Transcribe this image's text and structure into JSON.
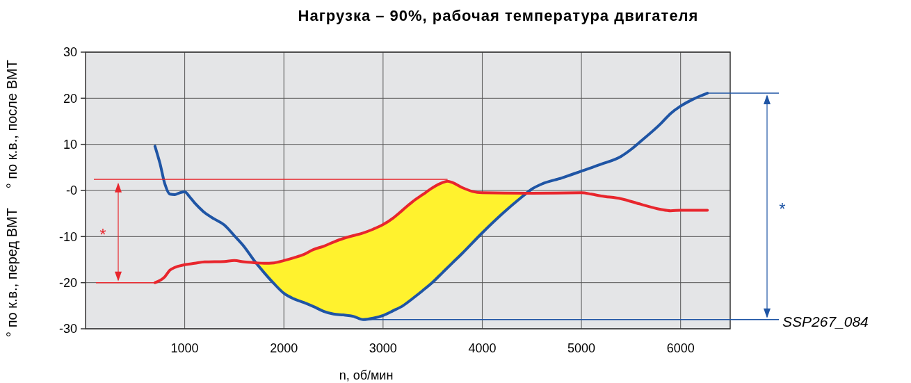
{
  "chart_data": {
    "type": "line",
    "title": "Нагрузка – 90%, рабочая температура двигателя",
    "xlabel": "n, об/мин",
    "ylabel": "° по к.в., перед ВМТ     ° по к.в., после ВМТ",
    "xlim": [
      0,
      6500
    ],
    "xticks": [
      1000,
      2000,
      3000,
      4000,
      5000,
      6000
    ],
    "ylim": [
      -30,
      30
    ],
    "yticks": [
      -30,
      -20,
      -10,
      {
        "value": 0,
        "label": "-0"
      },
      10,
      20,
      30
    ],
    "grid": true,
    "series": [
      {
        "color": "#1f55a5",
        "x": [
          700,
          750,
          800,
          850,
          900,
          950,
          1000,
          1050,
          1100,
          1150,
          1200,
          1300,
          1400,
          1500,
          1600,
          1700,
          1800,
          1900,
          2000,
          2100,
          2200,
          2300,
          2400,
          2500,
          2600,
          2700,
          2800,
          2900,
          3000,
          3100,
          3200,
          3300,
          3400,
          3500,
          3600,
          3700,
          3800,
          4000,
          4200,
          4400,
          4500,
          4600,
          4800,
          5000,
          5200,
          5400,
          5500,
          5600,
          5800,
          5900,
          6000,
          6100,
          6200,
          6270
        ],
        "values": [
          9.6,
          5.9,
          1.4,
          -0.8,
          -0.9,
          -0.5,
          -0.3,
          -1.4,
          -2.7,
          -3.8,
          -4.8,
          -6.2,
          -7.5,
          -9.8,
          -12.2,
          -15.2,
          -17.8,
          -20.2,
          -22.3,
          -23.5,
          -24.3,
          -25.2,
          -26.2,
          -26.8,
          -27.0,
          -27.3,
          -28.0,
          -27.7,
          -27.1,
          -26.1,
          -25.0,
          -23.4,
          -21.7,
          -19.9,
          -17.8,
          -15.7,
          -13.6,
          -9.2,
          -5.1,
          -1.4,
          0.3,
          1.4,
          2.7,
          4.2,
          5.7,
          7.4,
          8.9,
          10.7,
          14.5,
          16.7,
          18.3,
          19.5,
          20.5,
          21.1
        ]
      },
      {
        "color": "#e8262d",
        "x": [
          700,
          800,
          850,
          900,
          1000,
          1100,
          1200,
          1400,
          1500,
          1600,
          1720,
          1800,
          1900,
          2000,
          2100,
          2200,
          2300,
          2400,
          2500,
          2600,
          2700,
          2800,
          2900,
          3000,
          3100,
          3200,
          3300,
          3400,
          3500,
          3600,
          3650,
          3700,
          3800,
          3900,
          4000,
          4450,
          4500,
          5000,
          5100,
          5200,
          5400,
          5600,
          5800,
          5900,
          6000,
          6270
        ],
        "values": [
          -20,
          -18.7,
          -17.3,
          -16.7,
          -16.1,
          -15.8,
          -15.5,
          -15.4,
          -15.2,
          -15.5,
          -15.7,
          -15.8,
          -15.7,
          -15.2,
          -14.6,
          -13.9,
          -12.8,
          -12.1,
          -11.2,
          -10.4,
          -9.8,
          -9.2,
          -8.4,
          -7.4,
          -6.0,
          -4.2,
          -2.4,
          -0.9,
          0.6,
          1.7,
          2.0,
          1.7,
          0.6,
          -0.2,
          -0.5,
          -0.6,
          -0.6,
          -0.5,
          -0.8,
          -1.2,
          -1.8,
          -3.0,
          -4.1,
          -4.4,
          -4.3,
          -4.3
        ],
        "upper": [
          null,
          null,
          null,
          null,
          null,
          null,
          null,
          null,
          null,
          null,
          -15.7,
          -15.8,
          -15.7,
          -15.2,
          -14.6,
          -13.9,
          -12.8,
          -12.1,
          -11.2,
          -10.4,
          -9.8,
          -9.2,
          -8.4,
          -7.4,
          -6.0,
          -4.2,
          -2.4,
          -0.9,
          0.6,
          1.7,
          2.0,
          1.7,
          0.6,
          -0.2,
          -0.5,
          -0.6,
          null,
          null,
          null,
          null,
          null,
          null,
          null,
          null,
          null,
          null
        ],
        "lower": [
          null,
          null,
          null,
          null,
          null,
          null,
          null,
          null,
          null,
          null,
          -15.7,
          -17.8,
          -20.2,
          -22.3,
          -23.5,
          -24.3,
          -25.2,
          -26.2,
          -26.8,
          -27.0,
          -27.3,
          -28.0,
          -27.7,
          -27.1,
          -26.1,
          -25.0,
          -23.4,
          -21.7,
          -19.9,
          -17.8,
          -16.7,
          -15.7,
          -13.6,
          -11.4,
          -9.2,
          -0.6,
          null,
          null,
          null,
          null,
          null,
          null,
          null,
          null,
          null,
          null
        ]
      }
    ],
    "ref_lines": [
      {
        "axis": "y",
        "value": 2.4,
        "color": "#e8262d"
      }
    ],
    "annotations": [
      "*",
      "*",
      "SSP267_084"
    ]
  }
}
